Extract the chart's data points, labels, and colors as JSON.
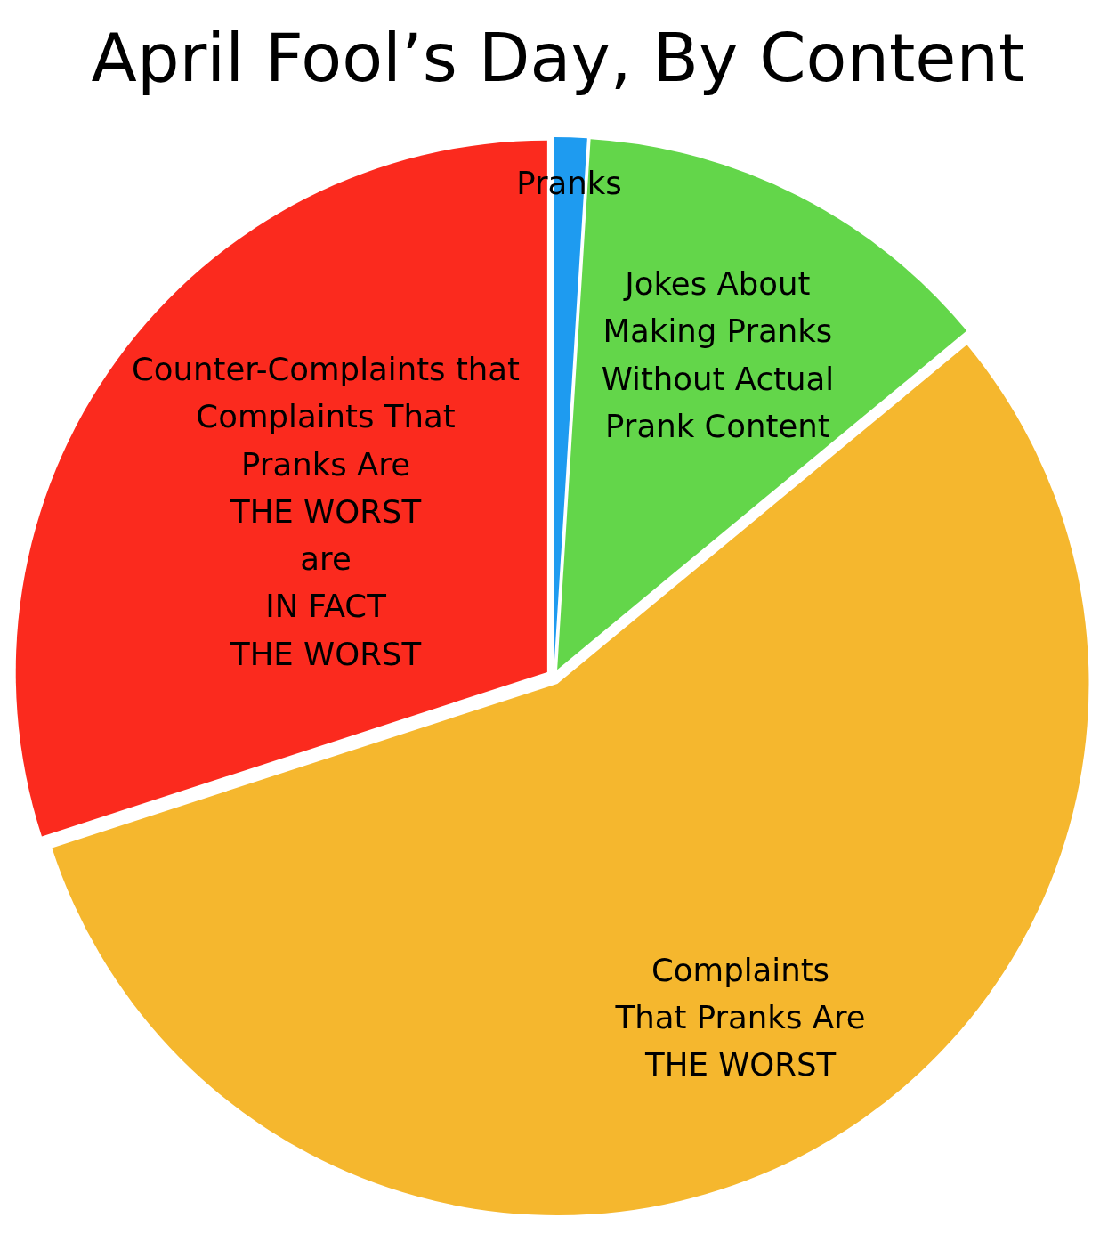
{
  "chart_data": {
    "type": "pie",
    "title": "April Fool’s Day, By Content",
    "categories": [
      "Pranks",
      "Jokes About\nMaking Pranks\nWithout Actual\nPrank Content",
      "Complaints\nThat Pranks Are\nTHE WORST",
      "Counter-Complaints that\nComplaints That\nPranks Are\nTHE WORST\nare\nIN FACT\nTHE WORST"
    ],
    "values": [
      1,
      13,
      56,
      30
    ],
    "colors": [
      "#1e9bf0",
      "#63d64a",
      "#f5b72e",
      "#fb2a1e"
    ]
  }
}
